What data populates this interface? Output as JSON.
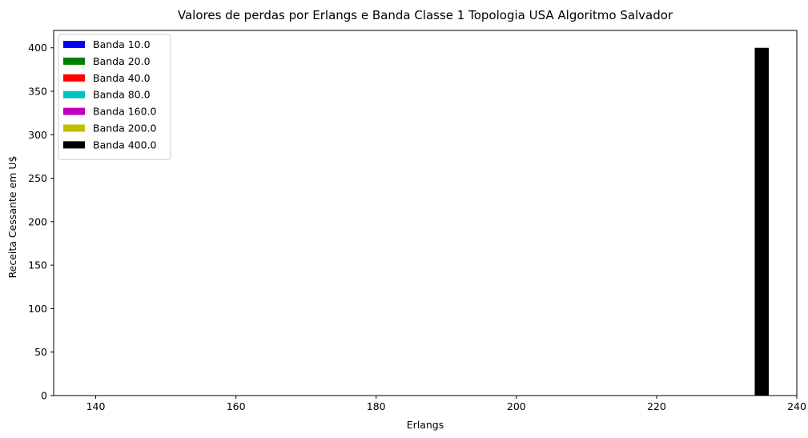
{
  "chart_data": {
    "type": "bar",
    "title": "Valores de perdas por Erlangs e Banda Classe 1  Topologia USA Algoritmo Salvador",
    "xlabel": "Erlangs",
    "ylabel": "Receita Cessante em U$",
    "xlim": [
      134,
      240
    ],
    "ylim": [
      0,
      420
    ],
    "xticks": [
      140,
      160,
      180,
      200,
      220,
      240
    ],
    "yticks": [
      0,
      50,
      100,
      150,
      200,
      250,
      300,
      350,
      400
    ],
    "grid": false,
    "legend_position": "top-left",
    "bar_width": 2,
    "series": [
      {
        "name": "Banda 10.0",
        "color": "#0000ff",
        "x": [
          235
        ],
        "values": [
          0
        ]
      },
      {
        "name": "Banda 20.0",
        "color": "#008000",
        "x": [
          235
        ],
        "values": [
          0
        ]
      },
      {
        "name": "Banda 40.0",
        "color": "#ff0000",
        "x": [
          235
        ],
        "values": [
          0
        ]
      },
      {
        "name": "Banda 80.0",
        "color": "#00bfbf",
        "x": [
          235
        ],
        "values": [
          0
        ]
      },
      {
        "name": "Banda 160.0",
        "color": "#bf00bf",
        "x": [
          235
        ],
        "values": [
          0
        ]
      },
      {
        "name": "Banda 200.0",
        "color": "#bfbf00",
        "x": [
          235
        ],
        "values": [
          0
        ]
      },
      {
        "name": "Banda 400.0",
        "color": "#000000",
        "x": [
          235
        ],
        "values": [
          400
        ]
      }
    ]
  }
}
